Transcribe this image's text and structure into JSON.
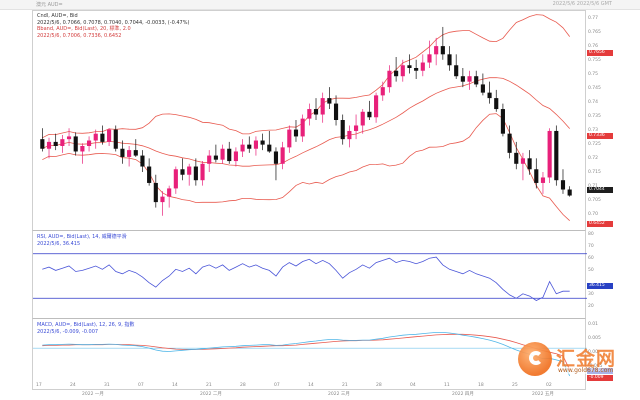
{
  "window": {
    "title": "澳元 AUD=",
    "top_right": "2022/5/6  2022/5/6 GMT"
  },
  "colors": {
    "candle_up": "#e8207a",
    "candle_down": "#111111",
    "bollinger": "#e85a4f",
    "rsi_line": "#4a55d8",
    "rsi_level": "#2a35c8",
    "macd_dif": "#4fb6e8",
    "macd_dea": "#e85a4f",
    "tag_red": "#e43b3b",
    "tag_dark": "#1e1e1e",
    "tag_blue": "#2841c4"
  },
  "legend": {
    "price": {
      "line1": "Cndl, AUD=, Bid",
      "line1_values": "2022/5/6, 0.7066, 0.7078, 0.7040, 0.7044, -0.0033, (-0.47%)",
      "line2": "Bband, AUD=, Bid(Last), 20, 標準, 2.0",
      "line3": "2022/5/6, 0.7006, 0.7336, 0.6452"
    },
    "rsi": {
      "line1": "RSI, AUD=, Bid(Last), 14, 威爾德平滑",
      "line2": "2022/5/6, 36.415"
    },
    "macd": {
      "line1": "MACD, AUD=, Bid(Last), 12, 26, 9, 指數",
      "line2": "2022/5/6, -0.009, -0.007"
    }
  },
  "price_axis": {
    "ticks": [
      "0.77",
      "0.765",
      "0.76",
      "0.755",
      "0.75",
      "0.745",
      "0.74",
      "0.735",
      "0.73",
      "0.725",
      "0.72",
      "0.715",
      "0.71",
      "0.705",
      "0.70",
      "0.695"
    ],
    "tags": [
      {
        "label": "0.7656",
        "style": "red"
      },
      {
        "label": "0.7336",
        "style": "red"
      },
      {
        "label": "0.7044",
        "style": "dark"
      },
      {
        "label": "0.6452",
        "style": "red"
      }
    ]
  },
  "rsi_axis": {
    "ticks": [
      "80",
      "70",
      "60",
      "50",
      "40",
      "30",
      "20"
    ],
    "tag": "36.415"
  },
  "macd_axis": {
    "ticks": [
      "0.01",
      "0.005",
      "0.00",
      "-0.005"
    ],
    "tags": [
      "-0.007",
      "-0.009"
    ]
  },
  "x_axis": {
    "days": [
      "17",
      "24",
      "31",
      "07",
      "14",
      "21",
      "28",
      "07",
      "14",
      "21",
      "28",
      "04",
      "11",
      "18",
      "25",
      "02"
    ],
    "months": [
      "2022 一月",
      "2022 二月",
      "2022 三月",
      "2022 四月",
      "2022 五月"
    ]
  },
  "watermark": {
    "brand": "汇金网",
    "url": "www.gold678.com"
  },
  "candles": [
    [
      0.725,
      0.729,
      0.7205,
      0.7215
    ],
    [
      0.7215,
      0.7255,
      0.718,
      0.724
    ],
    [
      0.724,
      0.727,
      0.721,
      0.7225
    ],
    [
      0.7225,
      0.7265,
      0.72,
      0.725
    ],
    [
      0.725,
      0.729,
      0.7225,
      0.726
    ],
    [
      0.726,
      0.7275,
      0.719,
      0.7205
    ],
    [
      0.7205,
      0.7235,
      0.716,
      0.7225
    ],
    [
      0.7225,
      0.726,
      0.7205,
      0.7245
    ],
    [
      0.7245,
      0.7285,
      0.7215,
      0.727
    ],
    [
      0.727,
      0.73,
      0.723,
      0.724
    ],
    [
      0.724,
      0.729,
      0.7225,
      0.7285
    ],
    [
      0.7285,
      0.73,
      0.7205,
      0.7215
    ],
    [
      0.7215,
      0.7245,
      0.716,
      0.7185
    ],
    [
      0.7185,
      0.7225,
      0.715,
      0.721
    ],
    [
      0.721,
      0.725,
      0.7185,
      0.719
    ],
    [
      0.719,
      0.721,
      0.713,
      0.715
    ],
    [
      0.715,
      0.718,
      0.708,
      0.709
    ],
    [
      0.709,
      0.712,
      0.7,
      0.702
    ],
    [
      0.702,
      0.706,
      0.697,
      0.704
    ],
    [
      0.704,
      0.708,
      0.7,
      0.707
    ],
    [
      0.707,
      0.715,
      0.705,
      0.714
    ],
    [
      0.714,
      0.718,
      0.71,
      0.712
    ],
    [
      0.712,
      0.716,
      0.708,
      0.715
    ],
    [
      0.715,
      0.718,
      0.708,
      0.71
    ],
    [
      0.71,
      0.717,
      0.708,
      0.716
    ],
    [
      0.716,
      0.721,
      0.713,
      0.719
    ],
    [
      0.719,
      0.723,
      0.7165,
      0.7175
    ],
    [
      0.7175,
      0.723,
      0.716,
      0.7215
    ],
    [
      0.7215,
      0.724,
      0.716,
      0.717
    ],
    [
      0.717,
      0.722,
      0.715,
      0.7205
    ],
    [
      0.7205,
      0.725,
      0.7185,
      0.723
    ],
    [
      0.723,
      0.726,
      0.72,
      0.7215
    ],
    [
      0.7215,
      0.726,
      0.719,
      0.7245
    ],
    [
      0.7245,
      0.727,
      0.721,
      0.723
    ],
    [
      0.723,
      0.728,
      0.72,
      0.7205
    ],
    [
      0.7205,
      0.722,
      0.71,
      0.716
    ],
    [
      0.716,
      0.724,
      0.714,
      0.722
    ],
    [
      0.722,
      0.73,
      0.72,
      0.7285
    ],
    [
      0.7285,
      0.732,
      0.724,
      0.726
    ],
    [
      0.726,
      0.734,
      0.724,
      0.7325
    ],
    [
      0.7325,
      0.738,
      0.73,
      0.736
    ],
    [
      0.736,
      0.74,
      0.732,
      0.734
    ],
    [
      0.734,
      0.742,
      0.731,
      0.74
    ],
    [
      0.74,
      0.744,
      0.736,
      0.738
    ],
    [
      0.738,
      0.741,
      0.73,
      0.732
    ],
    [
      0.732,
      0.734,
      0.723,
      0.725
    ],
    [
      0.725,
      0.73,
      0.722,
      0.728
    ],
    [
      0.728,
      0.734,
      0.725,
      0.73
    ],
    [
      0.73,
      0.736,
      0.727,
      0.735
    ],
    [
      0.735,
      0.739,
      0.732,
      0.733
    ],
    [
      0.733,
      0.742,
      0.731,
      0.741
    ],
    [
      0.741,
      0.746,
      0.739,
      0.744
    ],
    [
      0.744,
      0.752,
      0.742,
      0.75
    ],
    [
      0.75,
      0.755,
      0.746,
      0.748
    ],
    [
      0.748,
      0.754,
      0.746,
      0.752
    ],
    [
      0.752,
      0.756,
      0.749,
      0.751
    ],
    [
      0.751,
      0.754,
      0.747,
      0.75
    ],
    [
      0.75,
      0.756,
      0.748,
      0.753
    ],
    [
      0.753,
      0.761,
      0.751,
      0.756
    ],
    [
      0.756,
      0.762,
      0.752,
      0.759
    ],
    [
      0.759,
      0.766,
      0.754,
      0.756
    ],
    [
      0.756,
      0.759,
      0.75,
      0.752
    ],
    [
      0.752,
      0.756,
      0.747,
      0.748
    ],
    [
      0.748,
      0.751,
      0.744,
      0.746
    ],
    [
      0.746,
      0.75,
      0.743,
      0.748
    ],
    [
      0.748,
      0.75,
      0.744,
      0.745
    ],
    [
      0.745,
      0.749,
      0.741,
      0.742
    ],
    [
      0.742,
      0.746,
      0.738,
      0.74
    ],
    [
      0.74,
      0.743,
      0.735,
      0.736
    ],
    [
      0.736,
      0.738,
      0.726,
      0.727
    ],
    [
      0.727,
      0.73,
      0.718,
      0.72
    ],
    [
      0.72,
      0.724,
      0.714,
      0.716
    ],
    [
      0.716,
      0.72,
      0.71,
      0.718
    ],
    [
      0.718,
      0.721,
      0.712,
      0.714
    ],
    [
      0.714,
      0.718,
      0.707,
      0.709
    ],
    [
      0.709,
      0.713,
      0.705,
      0.711
    ],
    [
      0.711,
      0.729,
      0.709,
      0.728
    ],
    [
      0.728,
      0.73,
      0.708,
      0.71
    ],
    [
      0.71,
      0.714,
      0.705,
      0.7066
    ],
    [
      0.7066,
      0.7078,
      0.704,
      0.7044
    ]
  ],
  "rsi": [
    56,
    58,
    55,
    57,
    59,
    54,
    55,
    57,
    59,
    56,
    60,
    54,
    52,
    55,
    53,
    49,
    44,
    40,
    46,
    50,
    56,
    54,
    57,
    52,
    58,
    60,
    57,
    60,
    55,
    58,
    61,
    58,
    60,
    57,
    55,
    50,
    58,
    62,
    59,
    63,
    65,
    61,
    64,
    61,
    55,
    48,
    53,
    56,
    60,
    57,
    62,
    64,
    66,
    62,
    64,
    63,
    61,
    63,
    66,
    67,
    60,
    56,
    54,
    52,
    55,
    52,
    50,
    48,
    44,
    38,
    33,
    30,
    34,
    32,
    28,
    31,
    45,
    34,
    36.4,
    36.4
  ],
  "macd_dif": [
    0.001,
    0.0011,
    0.0011,
    0.0012,
    0.0013,
    0.0012,
    0.0011,
    0.0011,
    0.0012,
    0.0012,
    0.0013,
    0.0012,
    0.001,
    0.0009,
    0.0008,
    0.0005,
    0.0,
    -0.0006,
    -0.001,
    -0.0011,
    -0.0009,
    -0.0007,
    -0.0005,
    -0.0004,
    -0.0002,
    0.0,
    0.0002,
    0.0004,
    0.0005,
    0.0006,
    0.0008,
    0.0009,
    0.001,
    0.0011,
    0.0011,
    0.0009,
    0.001,
    0.0013,
    0.0015,
    0.0018,
    0.0021,
    0.0023,
    0.0026,
    0.0028,
    0.0028,
    0.0026,
    0.0025,
    0.0025,
    0.0026,
    0.0026,
    0.0029,
    0.0032,
    0.0036,
    0.0039,
    0.0042,
    0.0044,
    0.0045,
    0.0047,
    0.0049,
    0.0051,
    0.0051,
    0.0049,
    0.0046,
    0.0042,
    0.0039,
    0.0035,
    0.0031,
    0.0026,
    0.002,
    0.0012,
    0.0003,
    -0.0006,
    -0.0013,
    -0.002,
    -0.0028,
    -0.0034,
    -0.0033,
    -0.0038,
    -0.0044,
    -0.009
  ],
  "macd_dea": [
    0.0008,
    0.0009,
    0.0009,
    0.001,
    0.001,
    0.0011,
    0.0011,
    0.0011,
    0.0011,
    0.0011,
    0.0012,
    0.0012,
    0.0011,
    0.0011,
    0.001,
    0.0009,
    0.0007,
    0.0004,
    0.0001,
    -0.0001,
    -0.0003,
    -0.0004,
    -0.0004,
    -0.0004,
    -0.0004,
    -0.0003,
    -0.0002,
    -0.0001,
    0.0,
    0.0001,
    0.0003,
    0.0004,
    0.0005,
    0.0006,
    0.0007,
    0.0008,
    0.0008,
    0.0009,
    0.001,
    0.0012,
    0.0014,
    0.0016,
    0.0018,
    0.002,
    0.0022,
    0.0023,
    0.0024,
    0.0024,
    0.0025,
    0.0025,
    0.0026,
    0.0027,
    0.0029,
    0.0031,
    0.0033,
    0.0035,
    0.0037,
    0.0039,
    0.0041,
    0.0043,
    0.0044,
    0.0045,
    0.0045,
    0.0045,
    0.0044,
    0.0042,
    0.004,
    0.0037,
    0.0034,
    0.0029,
    0.0024,
    0.0018,
    0.0011,
    0.0005,
    -0.0002,
    -0.0008,
    -0.0013,
    -0.0018,
    -0.0025,
    -0.007
  ]
}
